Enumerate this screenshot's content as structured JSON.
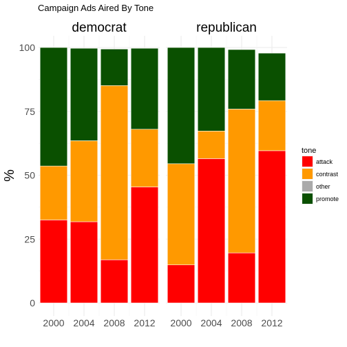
{
  "chart_data": {
    "type": "bar",
    "stacked": true,
    "title": "Campaign Ads Aired By Tone",
    "xlabel": "",
    "ylabel": "%",
    "ylim": [
      0,
      100
    ],
    "yticks": [
      "0",
      "25",
      "50",
      "75",
      "100"
    ],
    "categories": [
      "2000",
      "2004",
      "2008",
      "2012"
    ],
    "facets": [
      {
        "name": "democrat",
        "series": [
          {
            "name": "attack",
            "values": [
              32.5,
              31.8,
              16.9,
              45.4
            ]
          },
          {
            "name": "contrast",
            "values": [
              21.1,
              31.7,
              68.2,
              22.6
            ]
          },
          {
            "name": "other",
            "values": [
              0.0,
              0.0,
              0.0,
              0.0
            ]
          },
          {
            "name": "promote",
            "values": [
              46.4,
              36.2,
              14.3,
              31.7
            ]
          }
        ]
      },
      {
        "name": "republican",
        "series": [
          {
            "name": "attack",
            "values": [
              14.9,
              56.5,
              19.6,
              59.6
            ]
          },
          {
            "name": "contrast",
            "values": [
              39.6,
              10.8,
              56.3,
              19.6
            ]
          },
          {
            "name": "other",
            "values": [
              0.0,
              0.0,
              0.0,
              0.0
            ]
          },
          {
            "name": "promote",
            "values": [
              45.5,
              32.7,
              23.3,
              18.6
            ]
          }
        ]
      }
    ],
    "legend": {
      "title": "tone",
      "placement": "right",
      "entries": [
        {
          "label": "attack",
          "color": "#ff0000"
        },
        {
          "label": "contrast",
          "color": "#ff9900"
        },
        {
          "label": "other",
          "color": "#aaaaaa"
        },
        {
          "label": "promote",
          "color": "#0a5000"
        }
      ]
    },
    "grid": true
  }
}
